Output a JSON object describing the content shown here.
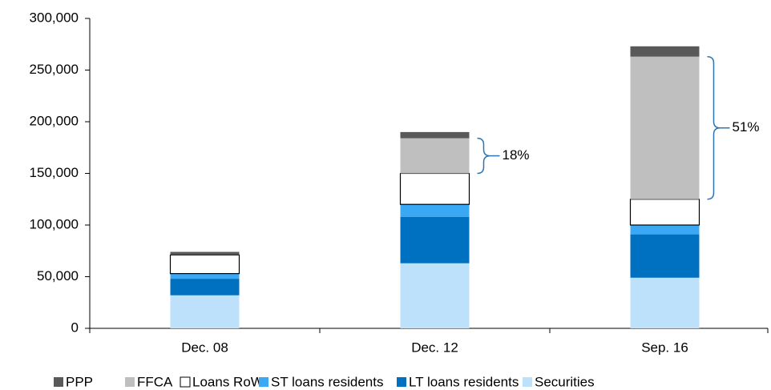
{
  "chart_data": {
    "type": "bar",
    "stacked": true,
    "categories": [
      "Dec. 08",
      "Dec. 12",
      "Sep. 16"
    ],
    "series": [
      {
        "name": "PPP",
        "color": "#595959",
        "values": [
          3000,
          6000,
          10000
        ]
      },
      {
        "name": "FFCA",
        "color": "#bfbfbf",
        "values": [
          0,
          34000,
          138000
        ]
      },
      {
        "name": "Loans RoW",
        "color": "#ffffff",
        "values": [
          18000,
          30000,
          25000
        ]
      },
      {
        "name": "ST loans residents",
        "color": "#3aa8f5",
        "values": [
          5000,
          12000,
          9000
        ]
      },
      {
        "name": "LT loans residents",
        "color": "#0070c0",
        "values": [
          16000,
          45000,
          42000
        ]
      },
      {
        "name": "Securities",
        "color": "#bde0fb",
        "values": [
          32000,
          63000,
          49000
        ]
      }
    ],
    "annotations": [
      "18%",
      "51%"
    ],
    "ylim": [
      0,
      300000
    ],
    "yticks": [
      0,
      {
        "value": 50000,
        "label": "50,000"
      },
      {
        "value": 100000,
        "label": "100,000"
      },
      {
        "value": 150000,
        "label": "150,000"
      },
      {
        "value": 200000,
        "label": "200,000"
      },
      {
        "value": 250000,
        "label": "250,000"
      },
      {
        "value": 300000,
        "label": "300,000"
      }
    ],
    "legend": "bottom"
  }
}
